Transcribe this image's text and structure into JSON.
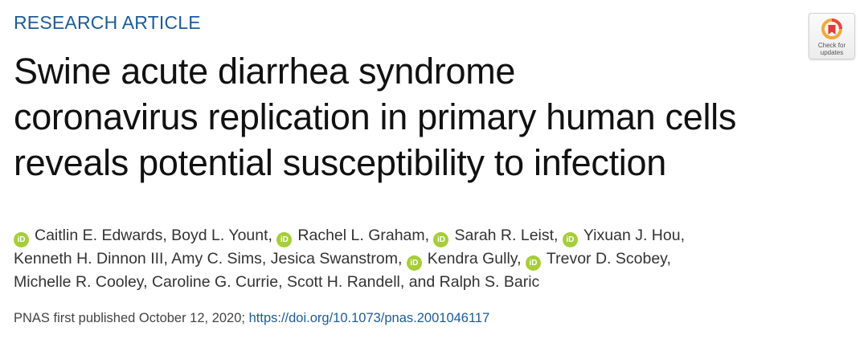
{
  "article_type": "RESEARCH ARTICLE",
  "title_lines": [
    "Swine acute diarrhea syndrome",
    "coronavirus replication in primary human cells",
    "reveals potential susceptibility to infection"
  ],
  "authors": [
    {
      "name": "Caitlin E. Edwards",
      "orcid": true
    },
    {
      "name": "Boyd L. Yount",
      "orcid": false
    },
    {
      "name": "Rachel L. Graham",
      "orcid": true
    },
    {
      "name": "Sarah R. Leist",
      "orcid": true
    },
    {
      "name": "Yixuan J. Hou",
      "orcid": true
    },
    {
      "name": "Kenneth H. Dinnon III",
      "orcid": false
    },
    {
      "name": "Amy C. Sims",
      "orcid": false
    },
    {
      "name": "Jesica Swanstrom",
      "orcid": false
    },
    {
      "name": "Kendra Gully",
      "orcid": true
    },
    {
      "name": "Trevor D. Scobey",
      "orcid": true
    },
    {
      "name": "Michelle R. Cooley",
      "orcid": false
    },
    {
      "name": "Caroline G. Currie",
      "orcid": false
    },
    {
      "name": "Scott H. Randell",
      "orcid": false
    },
    {
      "name": "Ralph S. Baric",
      "orcid": false
    }
  ],
  "orcid_icon_text": "iD",
  "publication": {
    "text": "PNAS first published October 12, 2020;",
    "doi": "https://doi.org/10.1073/pnas.2001046117"
  },
  "check_updates": {
    "label_line1": "Check for",
    "label_line2": "updates"
  },
  "colors": {
    "accent": "#1b5c9a",
    "orcid": "#a6ce39"
  }
}
